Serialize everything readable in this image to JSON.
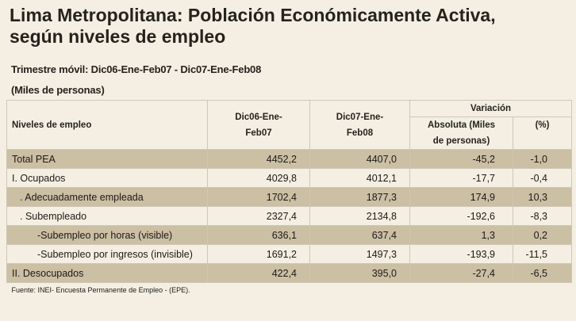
{
  "title_line1": "Lima Metropolitana: Población Económicamente Activa,",
  "title_line2": "según niveles de empleo",
  "subtitle": "Trimestre móvil: Dic06-Ene-Feb07  -  Dic07-Ene-Feb08",
  "units": "(Miles de personas)",
  "header": {
    "col_label": "Niveles de empleo",
    "col1_line1": "Dic06-Ene-",
    "col1_line2": "Feb07",
    "col2_line1": "Dic07-Ene-",
    "col2_line2": "Feb08",
    "variacion": "Variación",
    "abs_line1": "Absoluta (Miles",
    "abs_line2": "de personas)",
    "pct": "(%)"
  },
  "rows": [
    {
      "label": "Total PEA",
      "v1": "4452,2",
      "v2": "4407,0",
      "abs": "-45,2",
      "pct": "-1,0"
    },
    {
      "label": "I. Ocupados",
      "v1": "4029,8",
      "v2": "4012,1",
      "abs": "-17,7",
      "pct": "-0,4"
    },
    {
      "label": ". Adecuadamente empleada",
      "v1": "1702,4",
      "v2": "1877,3",
      "abs": "174,9",
      "pct": "10,3"
    },
    {
      "label": ". Subempleado",
      "v1": "2327,4",
      "v2": "2134,8",
      "abs": "-192,6",
      "pct": "-8,3"
    },
    {
      "label": "-Subempleo por horas (visible)",
      "v1": "636,1",
      "v2": "637,4",
      "abs": "1,3",
      "pct": "0,2"
    },
    {
      "label": "-Subempleo por ingresos (invisible)",
      "v1": "1691,2",
      "v2": "1497,3",
      "abs": "-193,9",
      "pct": "-11,5"
    },
    {
      "label": "II. Desocupados",
      "v1": "422,4",
      "v2": "395,0",
      "abs": "-27,4",
      "pct": "-6,5"
    }
  ],
  "source": "Fuente: INEI- Encuesta Permanente de Empleo - (EPE)."
}
